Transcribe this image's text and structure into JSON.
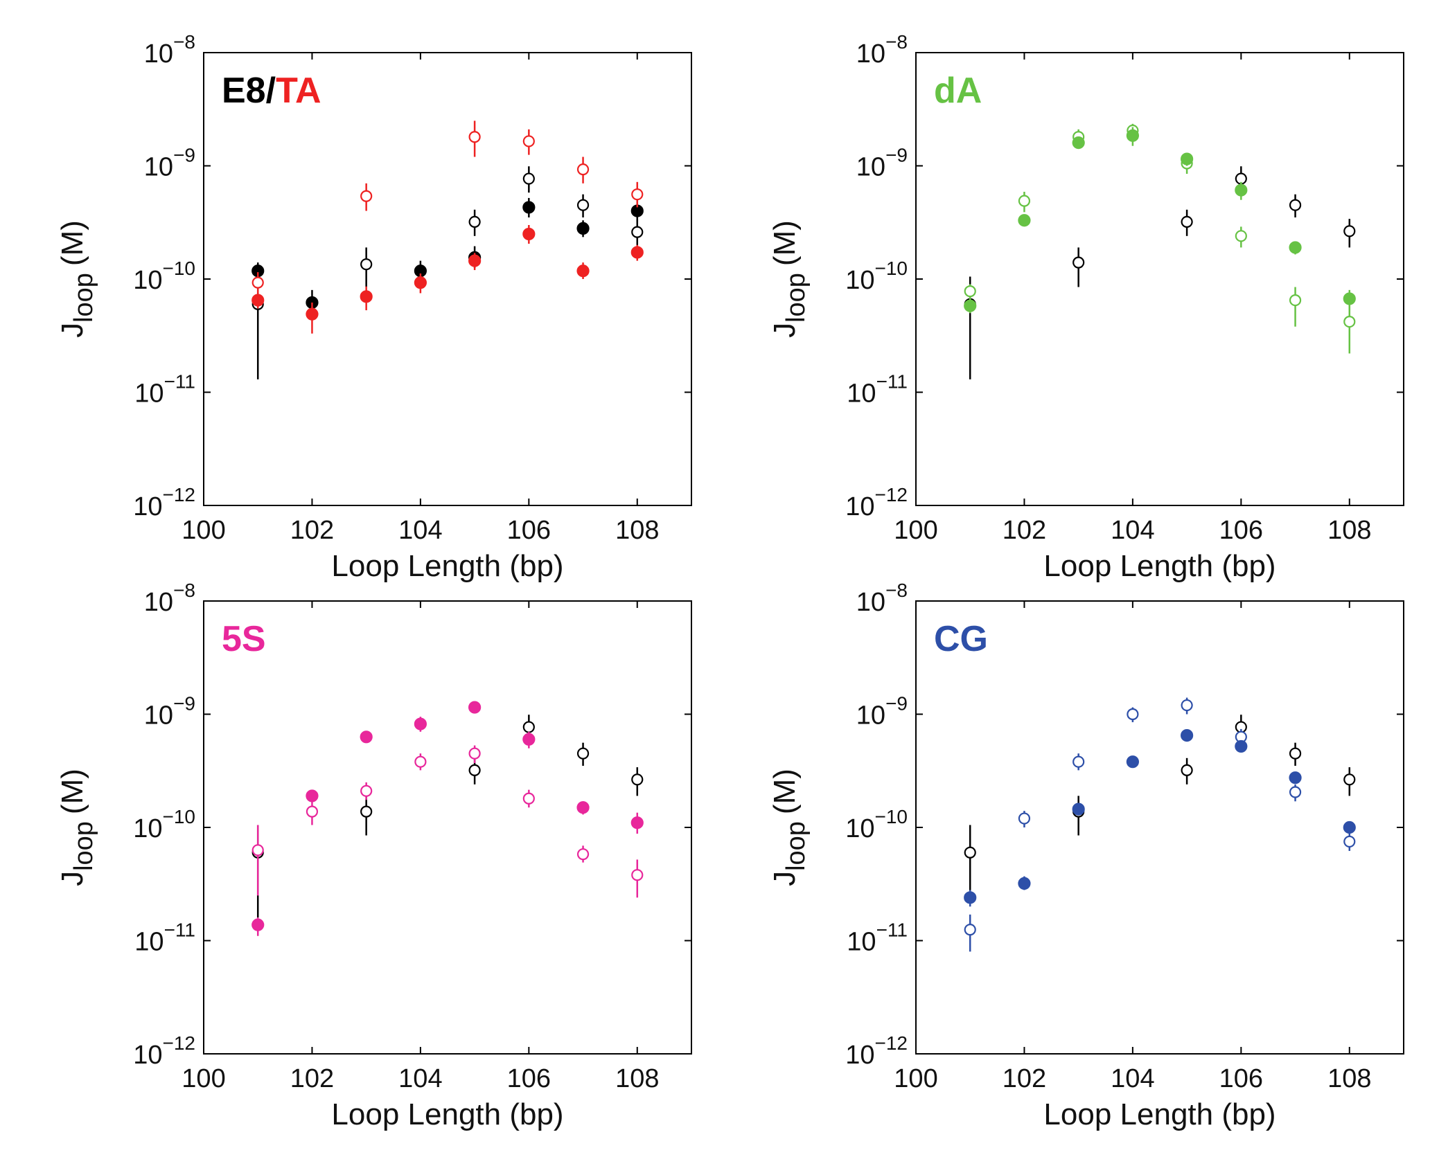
{
  "chart_data": [
    {
      "type": "scatter",
      "panel": "top-left",
      "title_parts": [
        {
          "text": "E8/",
          "color": "#000000"
        },
        {
          "text": "TA",
          "color": "#ee2222"
        }
      ],
      "xlabel": "Loop Length (bp)",
      "ylabel_main": "J",
      "ylabel_sub": "loop",
      "ylabel_unit": "(M)",
      "xlim": [
        100,
        109
      ],
      "ylim": [
        1e-12,
        1e-08
      ],
      "yscale": "log",
      "x_ticks": [
        100,
        102,
        104,
        106,
        108
      ],
      "y_ticks": [
        {
          "base": "10",
          "exp": "−8",
          "value": 1e-08
        },
        {
          "base": "10",
          "exp": "−9",
          "value": 1e-09
        },
        {
          "base": "10",
          "exp": "−10",
          "value": 1e-10
        },
        {
          "base": "10",
          "exp": "−11",
          "value": 1e-11
        },
        {
          "base": "10",
          "exp": "−12",
          "value": 1e-12
        }
      ],
      "series": [
        {
          "name": "E8 open",
          "color": "#000000",
          "marker": "open",
          "points": [
            {
              "x": 101,
              "y": 6e-11,
              "lo": 1.3e-11,
              "hi": 1.1e-10
            },
            {
              "x": 103,
              "y": 1.35e-10,
              "lo": 8.5e-11,
              "hi": 1.9e-10
            },
            {
              "x": 105,
              "y": 3.2e-10,
              "lo": 2.4e-10,
              "hi": 4.1e-10
            },
            {
              "x": 106,
              "y": 7.7e-10,
              "lo": 5.8e-10,
              "hi": 9.9e-10
            },
            {
              "x": 107,
              "y": 4.5e-10,
              "lo": 3.5e-10,
              "hi": 5.6e-10
            },
            {
              "x": 108,
              "y": 2.6e-10,
              "lo": 1.9e-10,
              "hi": 3.4e-10
            }
          ]
        },
        {
          "name": "E8 filled",
          "color": "#000000",
          "marker": "filled",
          "points": [
            {
              "x": 101,
              "y": 1.18e-10,
              "lo": 1e-10,
              "hi": 1.4e-10
            },
            {
              "x": 102,
              "y": 6.2e-11,
              "lo": 5e-11,
              "hi": 8e-11
            },
            {
              "x": 104,
              "y": 1.18e-10,
              "lo": 9.5e-11,
              "hi": 1.45e-10
            },
            {
              "x": 105,
              "y": 1.55e-10,
              "lo": 1.25e-10,
              "hi": 1.95e-10
            },
            {
              "x": 106,
              "y": 4.3e-10,
              "lo": 3.5e-10,
              "hi": 5.2e-10
            },
            {
              "x": 107,
              "y": 2.8e-10,
              "lo": 2.35e-10,
              "hi": 3.3e-10
            },
            {
              "x": 108,
              "y": 4e-10,
              "lo": 3.2e-10,
              "hi": 4.9e-10
            }
          ]
        },
        {
          "name": "TA open",
          "color": "#ee2222",
          "marker": "open",
          "points": [
            {
              "x": 101,
              "y": 9.3e-11,
              "lo": 7.5e-11,
              "hi": 1.15e-10
            },
            {
              "x": 103,
              "y": 5.4e-10,
              "lo": 4e-10,
              "hi": 7e-10
            },
            {
              "x": 105,
              "y": 1.8e-09,
              "lo": 1.2e-09,
              "hi": 2.5e-09
            },
            {
              "x": 106,
              "y": 1.65e-09,
              "lo": 1.25e-09,
              "hi": 2.1e-09
            },
            {
              "x": 107,
              "y": 9.3e-10,
              "lo": 7e-10,
              "hi": 1.2e-09
            },
            {
              "x": 108,
              "y": 5.6e-10,
              "lo": 4.3e-10,
              "hi": 7.2e-10
            }
          ]
        },
        {
          "name": "TA filled",
          "color": "#ee2222",
          "marker": "filled",
          "points": [
            {
              "x": 101,
              "y": 6.5e-11,
              "lo": 5.5e-11,
              "hi": 7.5e-11
            },
            {
              "x": 102,
              "y": 4.9e-11,
              "lo": 3.3e-11,
              "hi": 6.2e-11
            },
            {
              "x": 103,
              "y": 7e-11,
              "lo": 5.3e-11,
              "hi": 8.6e-11
            },
            {
              "x": 104,
              "y": 9.3e-11,
              "lo": 7.5e-11,
              "hi": 1.12e-10
            },
            {
              "x": 105,
              "y": 1.45e-10,
              "lo": 1.2e-10,
              "hi": 1.7e-10
            },
            {
              "x": 106,
              "y": 2.5e-10,
              "lo": 2.05e-10,
              "hi": 3e-10
            },
            {
              "x": 107,
              "y": 1.18e-10,
              "lo": 1e-10,
              "hi": 1.4e-10
            },
            {
              "x": 108,
              "y": 1.72e-10,
              "lo": 1.45e-10,
              "hi": 2e-10
            }
          ]
        }
      ]
    },
    {
      "type": "scatter",
      "panel": "top-right",
      "title_parts": [
        {
          "text": "dA",
          "color": "#66c244"
        }
      ],
      "xlabel": "Loop Length (bp)",
      "ylabel_main": "J",
      "ylabel_sub": "loop",
      "ylabel_unit": "(M)",
      "xlim": [
        100,
        109
      ],
      "ylim": [
        1e-12,
        1e-08
      ],
      "yscale": "log",
      "x_ticks": [
        100,
        102,
        104,
        106,
        108
      ],
      "y_ticks": [
        {
          "base": "10",
          "exp": "−8",
          "value": 1e-08
        },
        {
          "base": "10",
          "exp": "−9",
          "value": 1e-09
        },
        {
          "base": "10",
          "exp": "−10",
          "value": 1e-10
        },
        {
          "base": "10",
          "exp": "−11",
          "value": 1e-11
        },
        {
          "base": "10",
          "exp": "−12",
          "value": 1e-12
        }
      ],
      "series": [
        {
          "name": "E8 open",
          "color": "#000000",
          "marker": "open",
          "points": [
            {
              "x": 101,
              "y": 6e-11,
              "lo": 1.3e-11,
              "hi": 1.05e-10
            },
            {
              "x": 103,
              "y": 1.4e-10,
              "lo": 8.5e-11,
              "hi": 1.9e-10
            },
            {
              "x": 105,
              "y": 3.2e-10,
              "lo": 2.4e-10,
              "hi": 4.1e-10
            },
            {
              "x": 106,
              "y": 7.7e-10,
              "lo": 5.8e-10,
              "hi": 9.9e-10
            },
            {
              "x": 107,
              "y": 4.5e-10,
              "lo": 3.5e-10,
              "hi": 5.6e-10
            },
            {
              "x": 108,
              "y": 2.65e-10,
              "lo": 1.9e-10,
              "hi": 3.4e-10
            }
          ]
        },
        {
          "name": "dA open",
          "color": "#66c244",
          "marker": "open",
          "points": [
            {
              "x": 101,
              "y": 7.8e-11,
              "lo": 6.5e-11,
              "hi": 9e-11
            },
            {
              "x": 102,
              "y": 4.9e-10,
              "lo": 3.9e-10,
              "hi": 5.9e-10
            },
            {
              "x": 103,
              "y": 1.8e-09,
              "lo": 1.55e-09,
              "hi": 2.1e-09
            },
            {
              "x": 104,
              "y": 2.05e-09,
              "lo": 1.8e-09,
              "hi": 2.35e-09
            },
            {
              "x": 105,
              "y": 1.05e-09,
              "lo": 8.5e-10,
              "hi": 1.25e-09
            },
            {
              "x": 106,
              "y": 2.4e-10,
              "lo": 1.9e-10,
              "hi": 2.9e-10
            },
            {
              "x": 107,
              "y": 6.5e-11,
              "lo": 3.8e-11,
              "hi": 8.5e-11
            },
            {
              "x": 108,
              "y": 4.2e-11,
              "lo": 2.2e-11,
              "hi": 6.2e-11
            }
          ]
        },
        {
          "name": "dA filled",
          "color": "#66c244",
          "marker": "filled",
          "points": [
            {
              "x": 101,
              "y": 5.8e-11,
              "lo": 5e-11,
              "hi": 6.6e-11
            },
            {
              "x": 102,
              "y": 3.3e-10,
              "lo": 3e-10,
              "hi": 3.6e-10
            },
            {
              "x": 103,
              "y": 1.6e-09,
              "lo": 1.45e-09,
              "hi": 1.75e-09
            },
            {
              "x": 104,
              "y": 1.85e-09,
              "lo": 1.5e-09,
              "hi": 2.2e-09
            },
            {
              "x": 105,
              "y": 1.15e-09,
              "lo": 1e-09,
              "hi": 1.3e-09
            },
            {
              "x": 106,
              "y": 6.1e-10,
              "lo": 5e-10,
              "hi": 7.2e-10
            },
            {
              "x": 107,
              "y": 1.9e-10,
              "lo": 1.65e-10,
              "hi": 2.15e-10
            },
            {
              "x": 108,
              "y": 6.7e-11,
              "lo": 5.3e-11,
              "hi": 8e-11
            }
          ]
        }
      ]
    },
    {
      "type": "scatter",
      "panel": "bottom-left",
      "title_parts": [
        {
          "text": "5S",
          "color": "#e8279b"
        }
      ],
      "xlabel": "Loop Length (bp)",
      "ylabel_main": "J",
      "ylabel_sub": "loop",
      "ylabel_unit": "(M)",
      "xlim": [
        100,
        109
      ],
      "ylim": [
        1e-12,
        1e-08
      ],
      "yscale": "log",
      "x_ticks": [
        100,
        102,
        104,
        106,
        108
      ],
      "y_ticks": [
        {
          "base": "10",
          "exp": "−8",
          "value": 1e-08
        },
        {
          "base": "10",
          "exp": "−9",
          "value": 1e-09
        },
        {
          "base": "10",
          "exp": "−10",
          "value": 1e-10
        },
        {
          "base": "10",
          "exp": "−11",
          "value": 1e-11
        },
        {
          "base": "10",
          "exp": "−12",
          "value": 1e-12
        }
      ],
      "series": [
        {
          "name": "E8 open",
          "color": "#000000",
          "marker": "open",
          "points": [
            {
              "x": 101,
              "y": 6e-11,
              "lo": 1.6e-11,
              "hi": 1.05e-10
            },
            {
              "x": 103,
              "y": 1.38e-10,
              "lo": 8.5e-11,
              "hi": 1.9e-10
            },
            {
              "x": 105,
              "y": 3.2e-10,
              "lo": 2.4e-10,
              "hi": 4.1e-10
            },
            {
              "x": 106,
              "y": 7.7e-10,
              "lo": 5.8e-10,
              "hi": 9.9e-10
            },
            {
              "x": 107,
              "y": 4.5e-10,
              "lo": 3.5e-10,
              "hi": 5.6e-10
            },
            {
              "x": 108,
              "y": 2.65e-10,
              "lo": 1.9e-10,
              "hi": 3.4e-10
            }
          ]
        },
        {
          "name": "5S open",
          "color": "#e8279b",
          "marker": "open",
          "points": [
            {
              "x": 101,
              "y": 6.3e-11,
              "lo": 2.5e-11,
              "hi": 1.05e-10
            },
            {
              "x": 102,
              "y": 1.38e-10,
              "lo": 1.05e-10,
              "hi": 1.7e-10
            },
            {
              "x": 103,
              "y": 2.1e-10,
              "lo": 1.75e-10,
              "hi": 2.5e-10
            },
            {
              "x": 104,
              "y": 3.8e-10,
              "lo": 3.2e-10,
              "hi": 4.5e-10
            },
            {
              "x": 105,
              "y": 4.5e-10,
              "lo": 3.7e-10,
              "hi": 5.3e-10
            },
            {
              "x": 106,
              "y": 1.8e-10,
              "lo": 1.5e-10,
              "hi": 2.15e-10
            },
            {
              "x": 107,
              "y": 5.8e-11,
              "lo": 4.9e-11,
              "hi": 6.9e-11
            },
            {
              "x": 108,
              "y": 3.8e-11,
              "lo": 2.4e-11,
              "hi": 5.2e-11
            }
          ]
        },
        {
          "name": "5S filled",
          "color": "#e8279b",
          "marker": "filled",
          "points": [
            {
              "x": 101,
              "y": 1.38e-11,
              "lo": 1.1e-11,
              "hi": 1.6e-11
            },
            {
              "x": 102,
              "y": 1.9e-10,
              "lo": 1.7e-10,
              "hi": 2.1e-10
            },
            {
              "x": 103,
              "y": 6.3e-10,
              "lo": 5.7e-10,
              "hi": 6.9e-10
            },
            {
              "x": 104,
              "y": 8.2e-10,
              "lo": 7e-10,
              "hi": 9.5e-10
            },
            {
              "x": 105,
              "y": 1.15e-09,
              "lo": 1.05e-09,
              "hi": 1.25e-09
            },
            {
              "x": 106,
              "y": 6e-10,
              "lo": 5e-10,
              "hi": 7e-10
            },
            {
              "x": 107,
              "y": 1.5e-10,
              "lo": 1.3e-10,
              "hi": 1.7e-10
            },
            {
              "x": 108,
              "y": 1.1e-10,
              "lo": 8.8e-11,
              "hi": 1.35e-10
            }
          ]
        }
      ]
    },
    {
      "type": "scatter",
      "panel": "bottom-right",
      "title_parts": [
        {
          "text": "CG",
          "color": "#2d4fa8"
        }
      ],
      "xlabel": "Loop Length (bp)",
      "ylabel_main": "J",
      "ylabel_sub": "loop",
      "ylabel_unit": "(M)",
      "xlim": [
        100,
        109
      ],
      "ylim": [
        1e-12,
        1e-08
      ],
      "yscale": "log",
      "x_ticks": [
        100,
        102,
        104,
        106,
        108
      ],
      "y_ticks": [
        {
          "base": "10",
          "exp": "−8",
          "value": 1e-08
        },
        {
          "base": "10",
          "exp": "−9",
          "value": 1e-09
        },
        {
          "base": "10",
          "exp": "−10",
          "value": 1e-10
        },
        {
          "base": "10",
          "exp": "−11",
          "value": 1e-11
        },
        {
          "base": "10",
          "exp": "−12",
          "value": 1e-12
        }
      ],
      "series": [
        {
          "name": "E8 open",
          "color": "#000000",
          "marker": "open",
          "points": [
            {
              "x": 101,
              "y": 6e-11,
              "lo": 2.5e-11,
              "hi": 1.05e-10
            },
            {
              "x": 103,
              "y": 1.38e-10,
              "lo": 8.5e-11,
              "hi": 1.9e-10
            },
            {
              "x": 105,
              "y": 3.2e-10,
              "lo": 2.4e-10,
              "hi": 4.1e-10
            },
            {
              "x": 106,
              "y": 7.7e-10,
              "lo": 5.8e-10,
              "hi": 9.9e-10
            },
            {
              "x": 107,
              "y": 4.5e-10,
              "lo": 3.5e-10,
              "hi": 5.6e-10
            },
            {
              "x": 108,
              "y": 2.65e-10,
              "lo": 1.9e-10,
              "hi": 3.4e-10
            }
          ]
        },
        {
          "name": "CG open",
          "color": "#2d4fa8",
          "marker": "open",
          "points": [
            {
              "x": 101,
              "y": 1.25e-11,
              "lo": 8e-12,
              "hi": 1.7e-11
            },
            {
              "x": 102,
              "y": 1.2e-10,
              "lo": 1e-10,
              "hi": 1.4e-10
            },
            {
              "x": 103,
              "y": 3.8e-10,
              "lo": 3.2e-10,
              "hi": 4.5e-10
            },
            {
              "x": 104,
              "y": 1e-09,
              "lo": 8.5e-10,
              "hi": 1.15e-09
            },
            {
              "x": 105,
              "y": 1.2e-09,
              "lo": 1e-09,
              "hi": 1.4e-09
            },
            {
              "x": 106,
              "y": 6.3e-10,
              "lo": 5.3e-10,
              "hi": 7.4e-10
            },
            {
              "x": 107,
              "y": 2.05e-10,
              "lo": 1.7e-10,
              "hi": 2.4e-10
            },
            {
              "x": 108,
              "y": 7.5e-11,
              "lo": 6.2e-11,
              "hi": 9e-11
            }
          ]
        },
        {
          "name": "CG filled",
          "color": "#2d4fa8",
          "marker": "filled",
          "points": [
            {
              "x": 101,
              "y": 2.4e-11,
              "lo": 2e-11,
              "hi": 2.8e-11
            },
            {
              "x": 102,
              "y": 3.2e-11,
              "lo": 2.8e-11,
              "hi": 3.7e-11
            },
            {
              "x": 103,
              "y": 1.45e-10,
              "lo": 1.3e-10,
              "hi": 1.6e-10
            },
            {
              "x": 104,
              "y": 3.8e-10,
              "lo": 3.5e-10,
              "hi": 4.1e-10
            },
            {
              "x": 105,
              "y": 6.5e-10,
              "lo": 6e-10,
              "hi": 7e-10
            },
            {
              "x": 106,
              "y": 5.2e-10,
              "lo": 4.8e-10,
              "hi": 5.6e-10
            },
            {
              "x": 107,
              "y": 2.75e-10,
              "lo": 2.5e-10,
              "hi": 3e-10
            },
            {
              "x": 108,
              "y": 1e-10,
              "lo": 9e-11,
              "hi": 1.1e-10
            }
          ]
        }
      ]
    }
  ]
}
